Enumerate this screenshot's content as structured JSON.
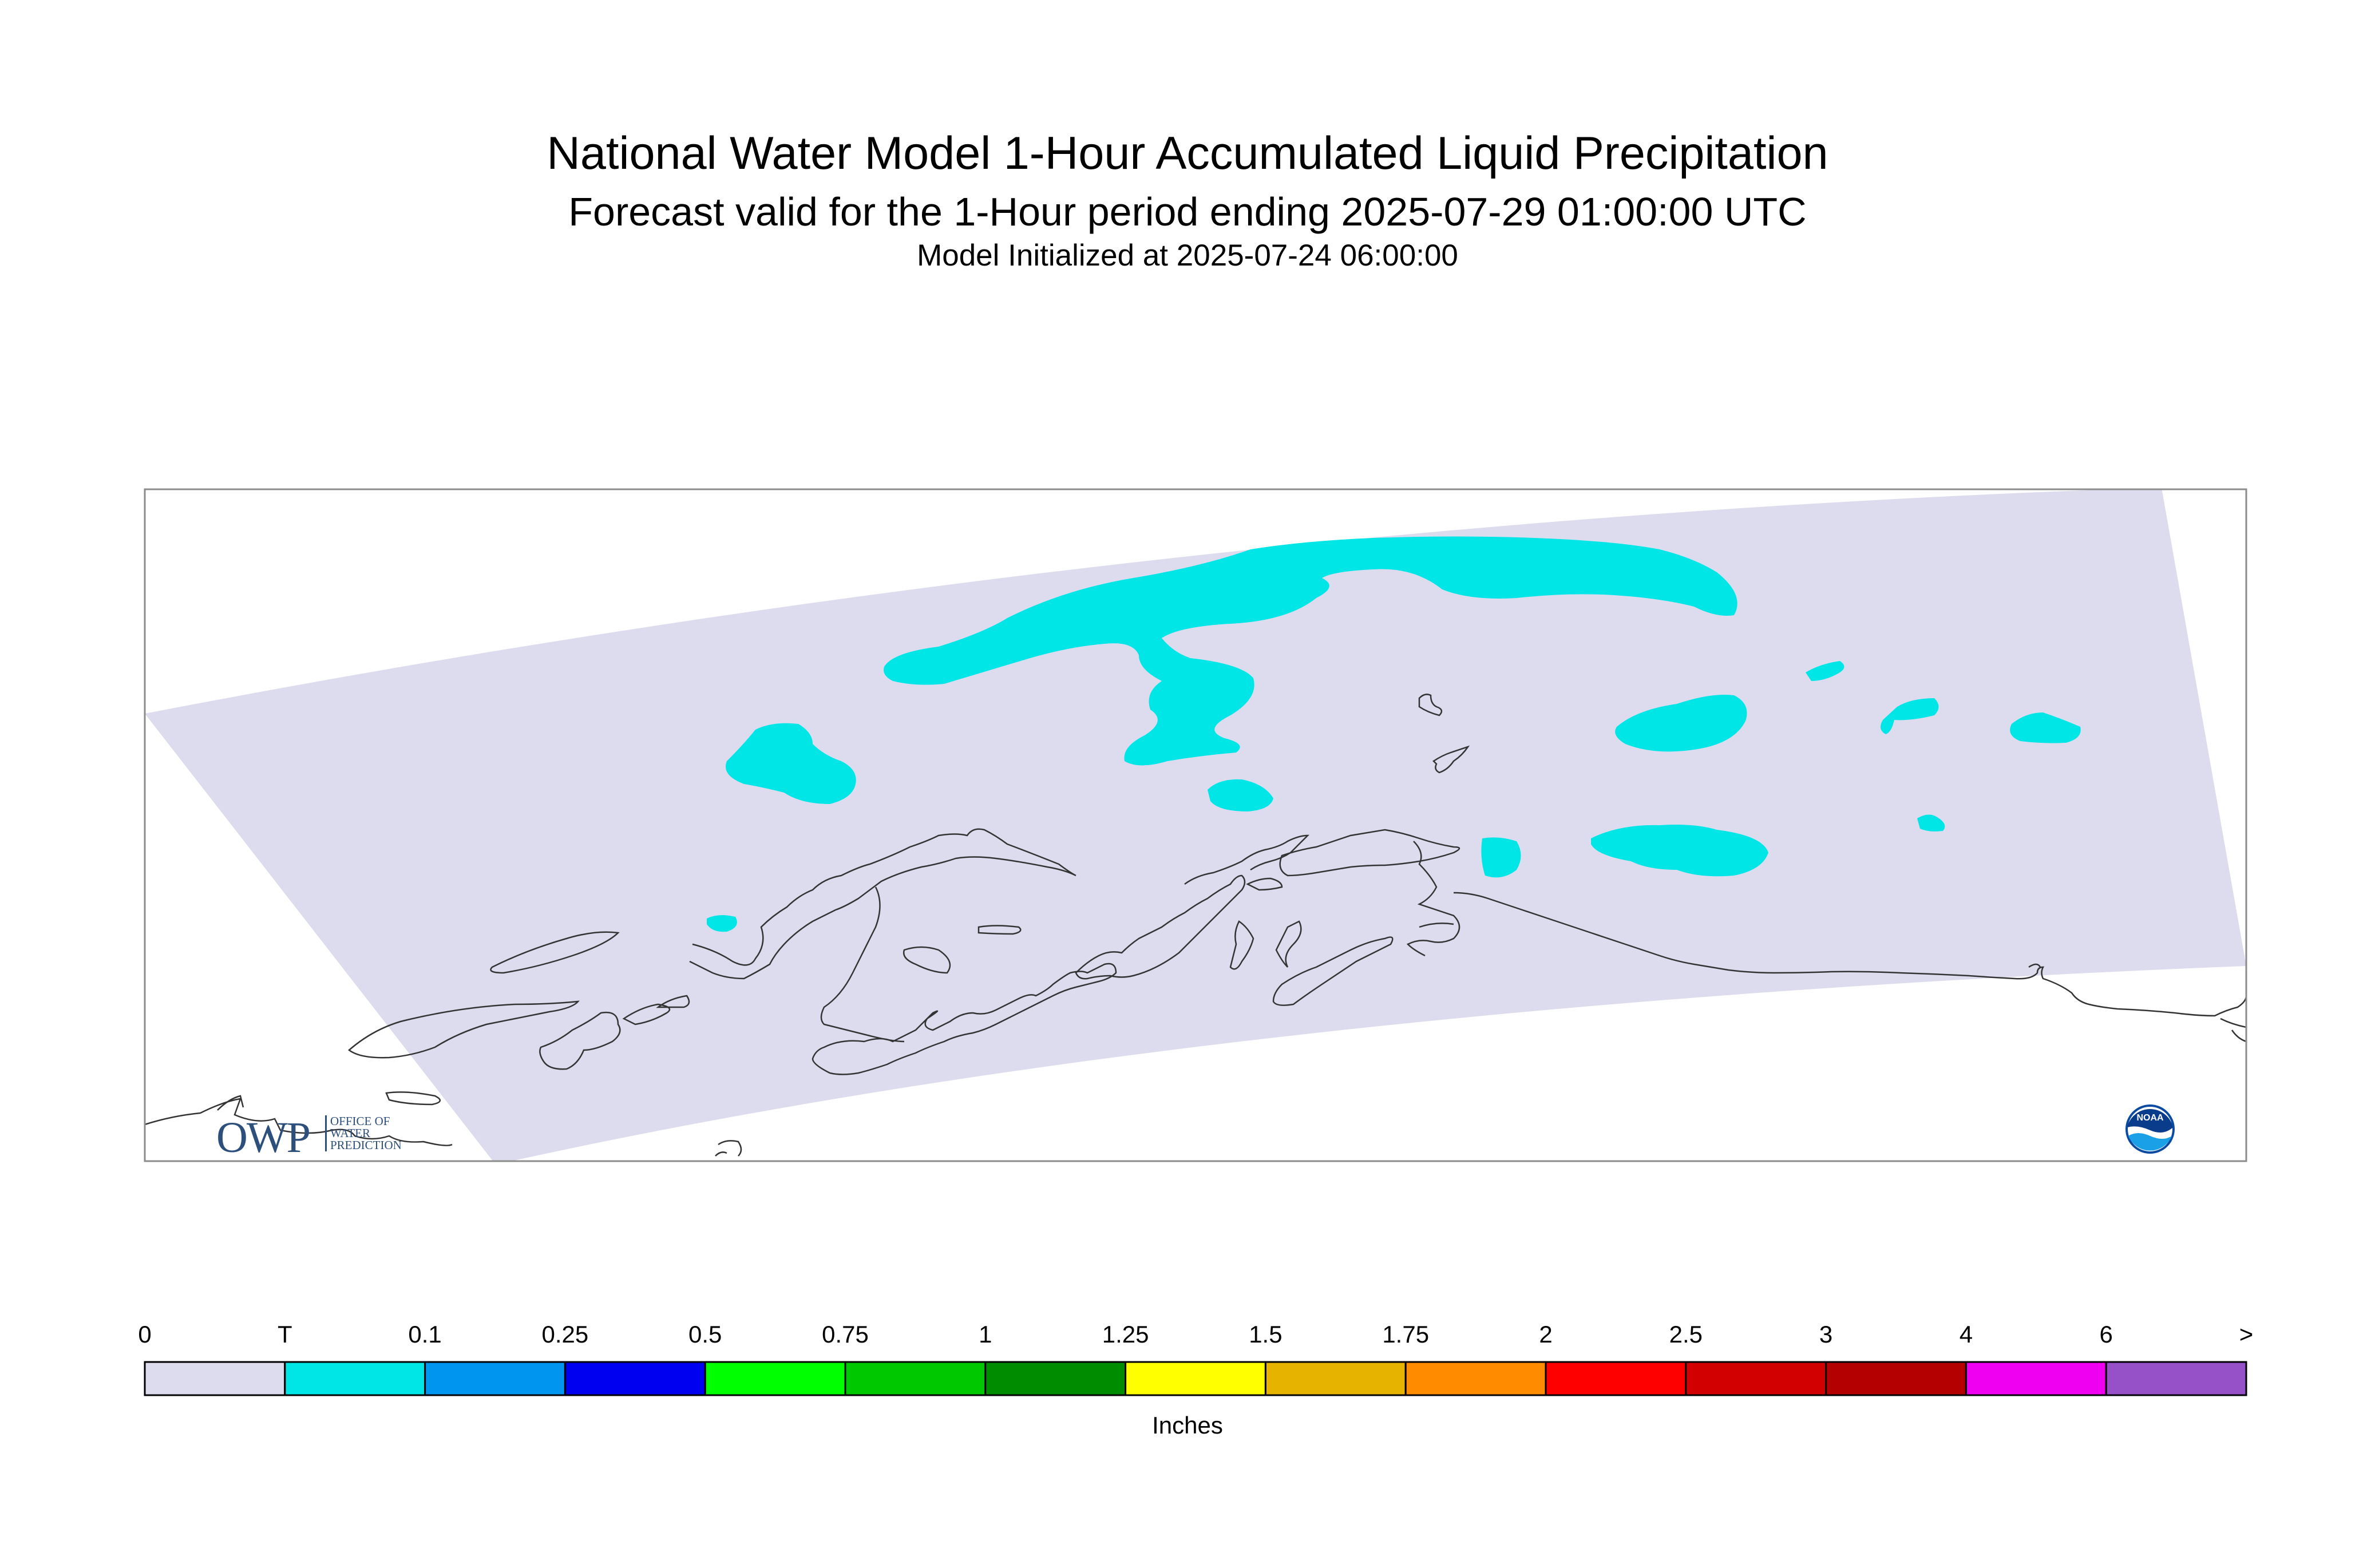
{
  "title": "National Water Model 1-Hour Accumulated Liquid Precipitation",
  "subtitle": "Forecast valid for the 1-Hour period ending 2025-07-29 01:00:00 UTC",
  "init_line": "Model Initialized at 2025-07-24 06:00:00",
  "logos": {
    "owp_text": "OWP",
    "owp_small_lines": [
      "OFFICE OF",
      "WATER",
      "PREDICTION"
    ],
    "noaa_text": "NOAA"
  },
  "legend": {
    "tick_labels": [
      "0",
      "T",
      "0.1",
      "0.25",
      "0.5",
      "0.75",
      "1",
      "1.25",
      "1.5",
      "1.75",
      "2",
      "2.5",
      "3",
      "4",
      "6",
      ">"
    ],
    "colors": [
      "#dcdcee",
      "#00e6e6",
      "#0096f0",
      "#0000f0",
      "#00ff00",
      "#00c800",
      "#008c00",
      "#ffff00",
      "#e6b400",
      "#ff8c00",
      "#ff0000",
      "#d20000",
      "#b40000",
      "#f000f0",
      "#9650c8"
    ],
    "units": "Inches"
  },
  "map": {
    "domain_fill": "#dcdcee",
    "precip_fill": "#00e6e6",
    "coast_color": "#333333",
    "frame_color": "#8c8c8c"
  }
}
